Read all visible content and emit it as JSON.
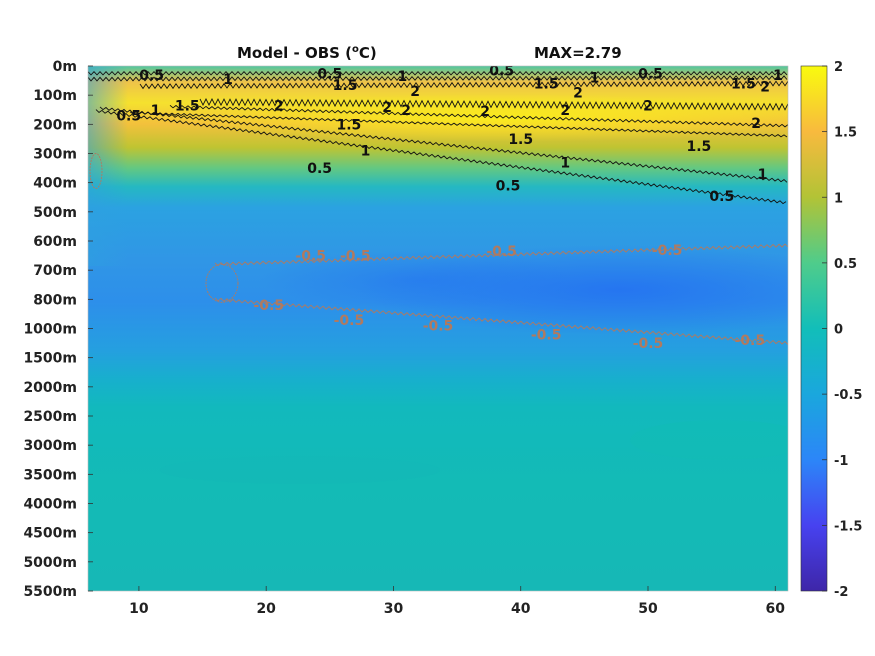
{
  "title": {
    "left": "Model - OBS (",
    "sup": "o",
    "unit_close": "C)",
    "right": "MAX=2.79"
  },
  "chart_data": {
    "type": "heatmap",
    "title": "Model - OBS (oC)",
    "annotation": "MAX=2.79",
    "x": {
      "ticks": [
        10,
        20,
        30,
        40,
        50,
        60
      ],
      "range": [
        6,
        61
      ]
    },
    "y": {
      "levels": [
        "0m",
        "100m",
        "200m",
        "300m",
        "400m",
        "500m",
        "600m",
        "700m",
        "800m",
        "1000m",
        "1500m",
        "2000m",
        "2500m",
        "3000m",
        "3500m",
        "4000m",
        "4500m",
        "5000m",
        "5500m"
      ],
      "orientation": "depth increasing downward"
    },
    "colorbar": {
      "range": [
        -2,
        2
      ],
      "ticks": [
        "2",
        "1.5",
        "1",
        "0.5",
        "0",
        "-0.5",
        "-1",
        "-1.5",
        "-2"
      ],
      "colormap": "parula"
    },
    "contours": {
      "positive_color": "#111111",
      "negative_color": "#b07a60",
      "labels": [
        {
          "text": "0.5",
          "x": 11.0,
          "y_level": 0.3,
          "sign": "pos"
        },
        {
          "text": "1",
          "x": 17.0,
          "y_level": 0.45,
          "sign": "pos"
        },
        {
          "text": "0.5",
          "x": 25.0,
          "y_level": 0.25,
          "sign": "pos"
        },
        {
          "text": "1.5",
          "x": 26.2,
          "y_level": 0.65,
          "sign": "pos"
        },
        {
          "text": "1",
          "x": 30.7,
          "y_level": 0.35,
          "sign": "pos"
        },
        {
          "text": "2",
          "x": 31.7,
          "y_level": 0.85,
          "sign": "pos"
        },
        {
          "text": "0.5",
          "x": 38.5,
          "y_level": 0.15,
          "sign": "pos"
        },
        {
          "text": "1.5",
          "x": 42.0,
          "y_level": 0.6,
          "sign": "pos"
        },
        {
          "text": "1",
          "x": 45.8,
          "y_level": 0.4,
          "sign": "pos"
        },
        {
          "text": "2",
          "x": 44.5,
          "y_level": 0.9,
          "sign": "pos"
        },
        {
          "text": "0.5",
          "x": 50.2,
          "y_level": 0.25,
          "sign": "pos"
        },
        {
          "text": "1.5",
          "x": 57.5,
          "y_level": 0.6,
          "sign": "pos"
        },
        {
          "text": "2",
          "x": 59.2,
          "y_level": 0.7,
          "sign": "pos"
        },
        {
          "text": "1",
          "x": 61.0,
          "y_level": 0.3,
          "sign": "pos"
        },
        {
          "text": "0.5",
          "x": 9.2,
          "y_level": 1.7,
          "sign": "pos"
        },
        {
          "text": "1",
          "x": 11.3,
          "y_level": 1.5,
          "sign": "pos"
        },
        {
          "text": "1.5",
          "x": 13.8,
          "y_level": 1.35,
          "sign": "pos"
        },
        {
          "text": "2",
          "x": 21.0,
          "y_level": 1.35,
          "sign": "pos"
        },
        {
          "text": "2",
          "x": 29.5,
          "y_level": 1.4,
          "sign": "pos"
        },
        {
          "text": "2",
          "x": 31.0,
          "y_level": 1.5,
          "sign": "pos"
        },
        {
          "text": "2",
          "x": 37.2,
          "y_level": 1.55,
          "sign": "pos"
        },
        {
          "text": "2",
          "x": 43.5,
          "y_level": 1.5,
          "sign": "pos"
        },
        {
          "text": "2",
          "x": 50.0,
          "y_level": 1.35,
          "sign": "pos"
        },
        {
          "text": "2",
          "x": 58.5,
          "y_level": 1.95,
          "sign": "pos"
        },
        {
          "text": "1.5",
          "x": 26.5,
          "y_level": 2.0,
          "sign": "pos"
        },
        {
          "text": "1.5",
          "x": 40.0,
          "y_level": 2.5,
          "sign": "pos"
        },
        {
          "text": "1.5",
          "x": 54.0,
          "y_level": 2.75,
          "sign": "pos"
        },
        {
          "text": "1",
          "x": 27.8,
          "y_level": 2.9,
          "sign": "pos"
        },
        {
          "text": "1",
          "x": 43.5,
          "y_level": 3.3,
          "sign": "pos"
        },
        {
          "text": "1",
          "x": 59.0,
          "y_level": 3.7,
          "sign": "pos"
        },
        {
          "text": "0.5",
          "x": 24.2,
          "y_level": 3.5,
          "sign": "pos"
        },
        {
          "text": "0.5",
          "x": 39.0,
          "y_level": 4.1,
          "sign": "pos"
        },
        {
          "text": "0.5",
          "x": 55.8,
          "y_level": 4.45,
          "sign": "pos"
        },
        {
          "text": "-0.5",
          "x": 23.5,
          "y_level": 6.5,
          "sign": "neg"
        },
        {
          "text": "-0.5",
          "x": 27.0,
          "y_level": 6.5,
          "sign": "neg"
        },
        {
          "text": "-0.5",
          "x": 38.5,
          "y_level": 6.35,
          "sign": "neg"
        },
        {
          "text": "-0.5",
          "x": 51.5,
          "y_level": 6.3,
          "sign": "neg"
        },
        {
          "text": "-0.5",
          "x": 20.2,
          "y_level": 8.2,
          "sign": "neg"
        },
        {
          "text": "-0.5",
          "x": 26.5,
          "y_level": 8.7,
          "sign": "neg"
        },
        {
          "text": "-0.5",
          "x": 33.5,
          "y_level": 8.9,
          "sign": "neg"
        },
        {
          "text": "-0.5",
          "x": 42.0,
          "y_level": 9.2,
          "sign": "neg"
        },
        {
          "text": "-0.5",
          "x": 50.0,
          "y_level": 9.5,
          "sign": "neg"
        },
        {
          "text": "-0.5",
          "x": 58.0,
          "y_level": 9.4,
          "sign": "neg"
        }
      ]
    }
  }
}
